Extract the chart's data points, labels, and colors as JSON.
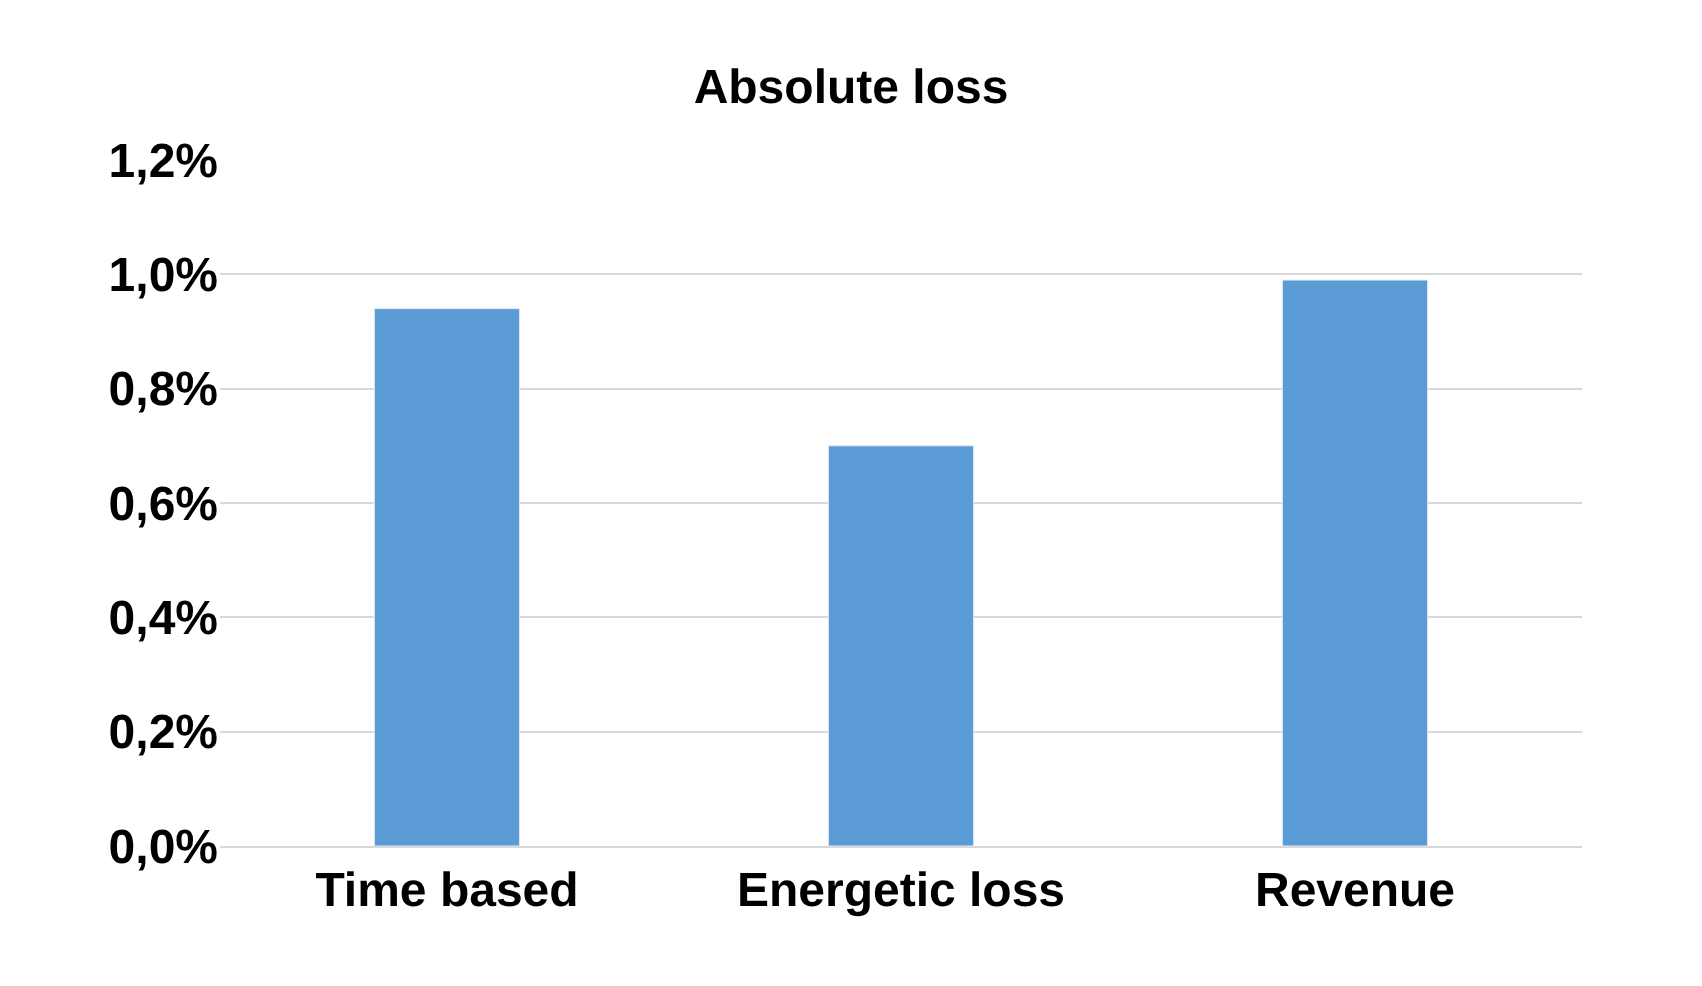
{
  "chart_data": {
    "type": "bar",
    "title": "Absolute loss",
    "categories": [
      "Time based",
      "Energetic loss",
      "Revenue"
    ],
    "values": [
      0.94,
      0.7,
      0.99
    ],
    "color": "#5b9bd5",
    "ylim": [
      0,
      1.2
    ],
    "yticks": [
      {
        "value": 0,
        "label": "0,0%"
      },
      {
        "value": 0.2,
        "label": "0,2%"
      },
      {
        "value": 0.4,
        "label": "0,4%"
      },
      {
        "value": 0.6,
        "label": "0,6%"
      },
      {
        "value": 0.8,
        "label": "0,8%"
      },
      {
        "value": 1.0,
        "label": "1,0%"
      },
      {
        "value": 1.2,
        "label": "1,2%"
      }
    ],
    "grid": "y"
  }
}
